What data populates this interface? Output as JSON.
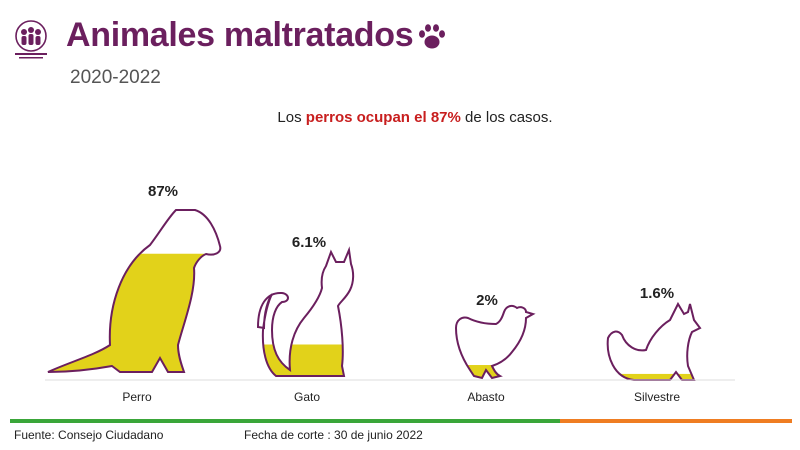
{
  "header": {
    "title": "Animales maltratados",
    "subtitle": "2020-2022",
    "logo_icon": "community-logo-icon",
    "title_icon": "paw-print-icon"
  },
  "headline": {
    "prefix": "Los ",
    "highlight": "perros ocupan el 87%",
    "suffix": " de los casos."
  },
  "chart_data": {
    "type": "bar",
    "categories": [
      "Perro",
      "Gato",
      "Abasto",
      "Silvestre"
    ],
    "values": [
      87,
      6.1,
      2,
      1.6
    ],
    "value_labels": [
      "87%",
      "6.1%",
      "2%",
      "1.6%"
    ],
    "icons": [
      "dog-silhouette-icon",
      "cat-silhouette-icon",
      "hen-silhouette-icon",
      "fox-silhouette-icon"
    ],
    "fill_levels": [
      0.73,
      0.25,
      0.18,
      0.08
    ],
    "unit": "%",
    "grid": false,
    "legend": "none"
  },
  "colors": {
    "title": "#6b1f5e",
    "fill": "#e2d21a",
    "outline": "#6b1f5e",
    "highlight": "#c81e1e",
    "rule_left": "#3aa639",
    "rule_right": "#ef7d22"
  },
  "footer": {
    "source": "Fuente: Consejo Ciudadano",
    "cutoff": "Fecha de corte : 30 de junio 2022"
  }
}
